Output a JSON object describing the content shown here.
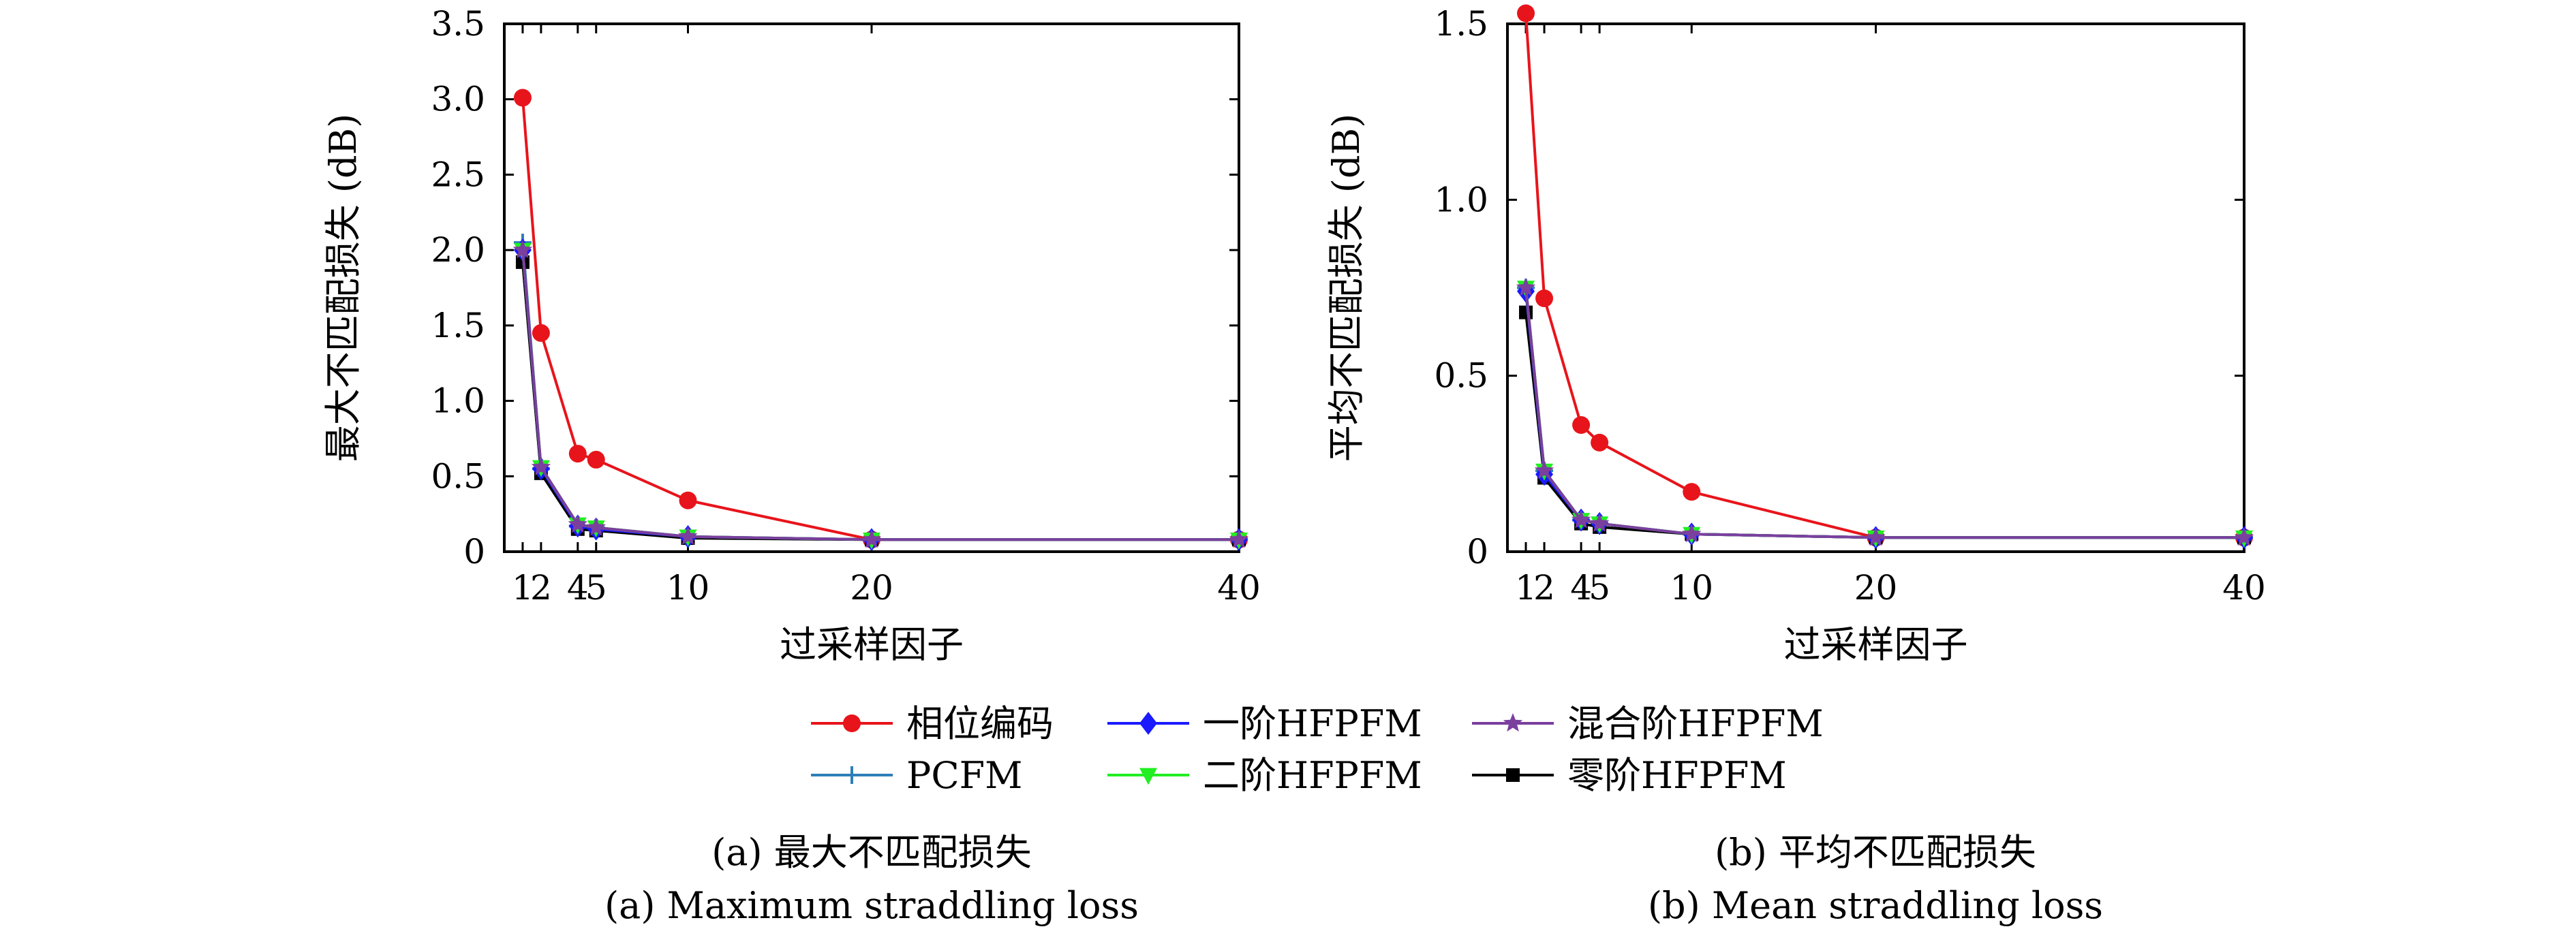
{
  "chart_data": [
    {
      "type": "line",
      "xlabel": "过采样因子",
      "ylabel": "最大不匹配损失 (dB)",
      "xlim": [
        0,
        40
      ],
      "ylim": [
        0,
        3.5
      ],
      "xticks": [
        1,
        2,
        4,
        5,
        10,
        20,
        40
      ],
      "xtick_labels": [
        "1",
        "2",
        "4",
        "5",
        "10",
        "20",
        "40"
      ],
      "yticks": [
        0,
        0.5,
        1.0,
        1.5,
        2.0,
        2.5,
        3.0,
        3.5
      ],
      "ytick_labels": [
        "0",
        "0.5",
        "1.0",
        "1.5",
        "2.0",
        "2.5",
        "3.0",
        "3.5"
      ],
      "grid": false,
      "caption_cn": "(a) 最大不匹配损失",
      "caption_en": "(a) Maximum straddling loss",
      "series": [
        {
          "name": "相位编码",
          "x": [
            1,
            2,
            4,
            5,
            10,
            20,
            40
          ],
          "y": [
            3.01,
            1.45,
            0.65,
            0.61,
            0.34,
            0.08,
            0.08
          ]
        },
        {
          "name": "PCFM",
          "x": [
            1,
            2,
            4,
            5,
            10,
            20,
            40
          ],
          "y": [
            2.05,
            0.55,
            0.17,
            0.16,
            0.1,
            0.08,
            0.08
          ]
        },
        {
          "name": "一阶HFPFM",
          "x": [
            1,
            2,
            4,
            5,
            10,
            20,
            40
          ],
          "y": [
            2.0,
            0.55,
            0.17,
            0.15,
            0.1,
            0.08,
            0.08
          ]
        },
        {
          "name": "二阶HFPFM",
          "x": [
            1,
            2,
            4,
            5,
            10,
            20,
            40
          ],
          "y": [
            2.0,
            0.56,
            0.18,
            0.16,
            0.1,
            0.08,
            0.08
          ]
        },
        {
          "name": "混合阶HFPFM",
          "x": [
            1,
            2,
            4,
            5,
            10,
            20,
            40
          ],
          "y": [
            2.0,
            0.56,
            0.18,
            0.16,
            0.1,
            0.08,
            0.08
          ]
        },
        {
          "name": "零阶HFPFM",
          "x": [
            1,
            2,
            4,
            5,
            10,
            20,
            40
          ],
          "y": [
            1.92,
            0.52,
            0.15,
            0.14,
            0.09,
            0.08,
            0.08
          ]
        }
      ]
    },
    {
      "type": "line",
      "xlabel": "过采样因子",
      "ylabel": "平均不匹配损失 (dB)",
      "xlim": [
        0,
        40
      ],
      "ylim": [
        0,
        1.5
      ],
      "xticks": [
        1,
        2,
        4,
        5,
        10,
        20,
        40
      ],
      "xtick_labels": [
        "1",
        "2",
        "4",
        "5",
        "10",
        "20",
        "40"
      ],
      "yticks": [
        0,
        0.5,
        1.0,
        1.5
      ],
      "ytick_labels": [
        "0",
        "0.5",
        "1.0",
        "1.5"
      ],
      "grid": false,
      "caption_cn": "(b) 平均不匹配损失",
      "caption_en": "(b) Mean straddling loss",
      "series": [
        {
          "name": "相位编码",
          "x": [
            1,
            2,
            4,
            5,
            10,
            20,
            40
          ],
          "y": [
            1.53,
            0.72,
            0.36,
            0.31,
            0.17,
            0.04,
            0.04
          ]
        },
        {
          "name": "PCFM",
          "x": [
            1,
            2,
            4,
            5,
            10,
            20,
            40
          ],
          "y": [
            0.75,
            0.23,
            0.09,
            0.08,
            0.05,
            0.04,
            0.04
          ]
        },
        {
          "name": "一阶HFPFM",
          "x": [
            1,
            2,
            4,
            5,
            10,
            20,
            40
          ],
          "y": [
            0.74,
            0.22,
            0.09,
            0.08,
            0.05,
            0.04,
            0.04
          ]
        },
        {
          "name": "二阶HFPFM",
          "x": [
            1,
            2,
            4,
            5,
            10,
            20,
            40
          ],
          "y": [
            0.75,
            0.23,
            0.09,
            0.08,
            0.05,
            0.04,
            0.04
          ]
        },
        {
          "name": "混合阶HFPFM",
          "x": [
            1,
            2,
            4,
            5,
            10,
            20,
            40
          ],
          "y": [
            0.75,
            0.23,
            0.09,
            0.08,
            0.05,
            0.04,
            0.04
          ]
        },
        {
          "name": "零阶HFPFM",
          "x": [
            1,
            2,
            4,
            5,
            10,
            20,
            40
          ],
          "y": [
            0.68,
            0.21,
            0.08,
            0.07,
            0.05,
            0.04,
            0.04
          ]
        }
      ]
    }
  ],
  "legend": {
    "placement": "bottom-center",
    "items": [
      {
        "label": "相位编码",
        "color": "#e8141b",
        "marker": "circle"
      },
      {
        "label": "一阶HFPFM",
        "color": "#1a1aff",
        "marker": "diamond"
      },
      {
        "label": "混合阶HFPFM",
        "color": "#7b3f9e",
        "marker": "star"
      },
      {
        "label": "PCFM",
        "color": "#2d7fb8",
        "marker": "plus"
      },
      {
        "label": "二阶HFPFM",
        "color": "#22ee22",
        "marker": "triangle-down"
      },
      {
        "label": "零阶HFPFM",
        "color": "#000000",
        "marker": "square"
      }
    ]
  },
  "series_draw_order": [
    "相位编码",
    "PCFM",
    "零阶HFPFM",
    "一阶HFPFM",
    "二阶HFPFM",
    "混合阶HFPFM"
  ]
}
